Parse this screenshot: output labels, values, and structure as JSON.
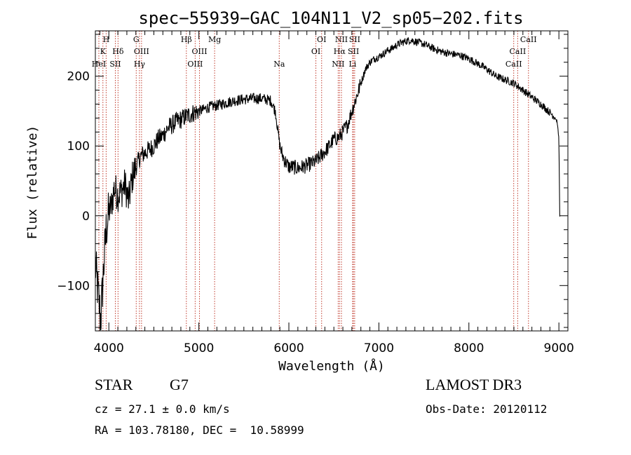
{
  "chart_data": {
    "type": "line",
    "title": "spec−55939−GAC_104N11_V2_sp05−202.fits",
    "xlabel": "Wavelength (Å)",
    "ylabel": "Flux (relative)",
    "xlim": [
      3850,
      9100
    ],
    "ylim": [
      -165,
      265
    ],
    "xticks": [
      4000,
      5000,
      6000,
      7000,
      8000,
      9000
    ],
    "yticks": [
      -100,
      0,
      100,
      200
    ],
    "xtick_labels": [
      "4000",
      "5000",
      "6000",
      "7000",
      "8000",
      "9000"
    ],
    "ytick_labels": [
      "−100",
      "0",
      "100",
      "200"
    ],
    "series": [
      {
        "name": "flux",
        "x": [
          3850,
          3880,
          3910,
          3940,
          3970,
          4000,
          4030,
          4060,
          4100,
          4140,
          4180,
          4220,
          4260,
          4300,
          4350,
          4400,
          4450,
          4500,
          4550,
          4600,
          4650,
          4700,
          4750,
          4800,
          4850,
          4900,
          4950,
          5000,
          5050,
          5100,
          5150,
          5200,
          5300,
          5400,
          5500,
          5600,
          5700,
          5800,
          5850,
          5880,
          5900,
          5920,
          5950,
          6000,
          6050,
          6100,
          6150,
          6200,
          6250,
          6300,
          6350,
          6400,
          6450,
          6500,
          6550,
          6600,
          6650,
          6700,
          6750,
          6800,
          6850,
          6900,
          6950,
          7000,
          7050,
          7100,
          7150,
          7200,
          7250,
          7300,
          7350,
          7400,
          7450,
          7500,
          7600,
          7700,
          7800,
          7900,
          8000,
          8100,
          8200,
          8300,
          8400,
          8500,
          8600,
          8700,
          8800,
          8900,
          8950,
          8980,
          9000,
          9010
        ],
        "y": [
          -70,
          -110,
          -150,
          -80,
          -20,
          5,
          15,
          40,
          30,
          35,
          45,
          20,
          55,
          70,
          85,
          90,
          95,
          100,
          110,
          115,
          125,
          130,
          135,
          138,
          142,
          145,
          148,
          150,
          152,
          155,
          157,
          158,
          162,
          165,
          167,
          168,
          168,
          165,
          150,
          120,
          100,
          90,
          80,
          70,
          70,
          68,
          70,
          72,
          75,
          78,
          85,
          92,
          100,
          110,
          112,
          120,
          130,
          150,
          170,
          190,
          210,
          220,
          225,
          228,
          232,
          237,
          240,
          245,
          248,
          250,
          252,
          250,
          248,
          246,
          240,
          235,
          232,
          230,
          225,
          218,
          210,
          200,
          195,
          190,
          180,
          170,
          160,
          148,
          142,
          135,
          110,
          0
        ]
      }
    ],
    "emission_lines": [
      {
        "label": "H",
        "wl": 3970,
        "row": 0
      },
      {
        "label": "G",
        "wl": 4304,
        "row": 0
      },
      {
        "label": "Hβ",
        "wl": 4861,
        "row": 0
      },
      {
        "label": "Mg",
        "wl": 5175,
        "row": 0
      },
      {
        "label": "OI",
        "wl": 6364,
        "row": 0
      },
      {
        "label": "NII",
        "wl": 6584,
        "row": 0
      },
      {
        "label": "SII",
        "wl": 6731,
        "row": 0
      },
      {
        "label": "CaII",
        "wl": 8662,
        "row": 0
      },
      {
        "label": "K",
        "wl": 3934,
        "row": 1
      },
      {
        "label": "Hδ",
        "wl": 4102,
        "row": 1
      },
      {
        "label": "OIII",
        "wl": 4363,
        "row": 1
      },
      {
        "label": "OIII",
        "wl": 5007,
        "row": 1
      },
      {
        "label": "OI",
        "wl": 6300,
        "row": 1
      },
      {
        "label": "Hα",
        "wl": 6563,
        "row": 1
      },
      {
        "label": "SII",
        "wl": 6717,
        "row": 1
      },
      {
        "label": "CaII",
        "wl": 8542,
        "row": 1
      },
      {
        "label": "HeI",
        "wl": 3889,
        "row": 2
      },
      {
        "label": "SII",
        "wl": 4072,
        "row": 2
      },
      {
        "label": "Hγ",
        "wl": 4340,
        "row": 2
      },
      {
        "label": "OIII",
        "wl": 4959,
        "row": 2
      },
      {
        "label": "Na",
        "wl": 5893,
        "row": 2
      },
      {
        "label": "NII",
        "wl": 6548,
        "row": 2
      },
      {
        "label": "Li",
        "wl": 6708,
        "row": 2
      },
      {
        "label": "CaII",
        "wl": 8498,
        "row": 2
      }
    ]
  },
  "info": {
    "object_class": "STAR",
    "subclass": "G7",
    "survey": "LAMOST DR3",
    "cz_line": "cz = 27.1 ± 0.0 km/s",
    "obs_date_line": "Obs-Date: 20120112",
    "coords_line": "RA = 103.78180, DEC =  10.58999"
  }
}
